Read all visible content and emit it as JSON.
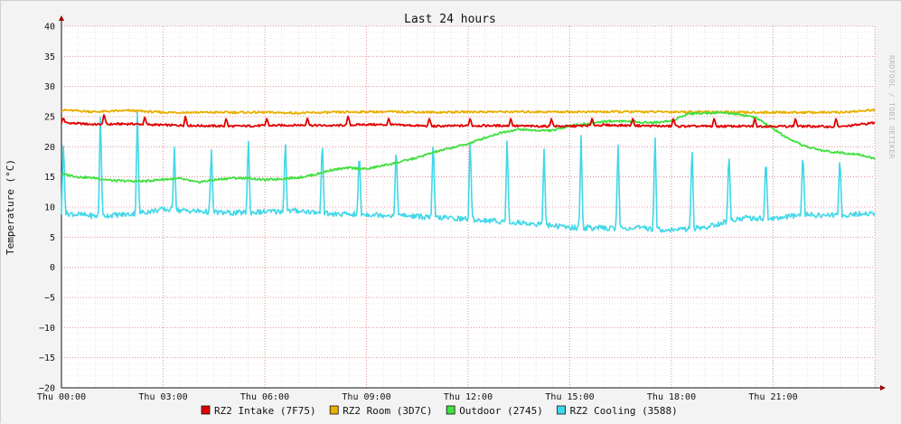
{
  "chart_data": {
    "type": "line",
    "title": "Last 24 hours",
    "ylabel": "Temperature (°C)",
    "ylim": [
      -20,
      40
    ],
    "xlim": [
      "Thu 00:00",
      "Thu 24:00"
    ],
    "yticks": [
      "40",
      "35",
      "30",
      "25",
      "20",
      "15",
      "10",
      "5",
      "0",
      "−5",
      "−10",
      "−15",
      "−20"
    ],
    "xticks": [
      "Thu 00:00",
      "Thu 03:00",
      "Thu 06:00",
      "Thu 09:00",
      "Thu 12:00",
      "Thu 15:00",
      "Thu 18:00",
      "Thu 21:00"
    ],
    "grid": true,
    "legend_position": "bottom",
    "watermark": "RRDTOOL / TOBI OETIKER",
    "series": [
      {
        "name": "RZ2 Intake (7F75)",
        "color": "#e00000",
        "x_hours": [
          0,
          1,
          2,
          3,
          4,
          5,
          6,
          7,
          8,
          9,
          10,
          11,
          12,
          13,
          14,
          15,
          16,
          17,
          18,
          19,
          20,
          21,
          22,
          23,
          24
        ],
        "values": [
          24,
          23.7,
          23.8,
          23.6,
          23.5,
          23.4,
          23.5,
          23.6,
          23.5,
          23.7,
          23.6,
          23.4,
          23.5,
          23.5,
          23.4,
          23.4,
          23.6,
          23.5,
          23.4,
          23.4,
          23.4,
          23.4,
          23.4,
          23.3,
          24
        ],
        "spikes": [
          24.8,
          25.5,
          25,
          25.2,
          24.8,
          24.8,
          24.9,
          25.2,
          24.8,
          24.8,
          24.8,
          24.8,
          24.8,
          24.8,
          24.8,
          24.8,
          24.8,
          24.8,
          24.8,
          24.8
        ]
      },
      {
        "name": "RZ2 Room (3D7C)",
        "color": "#e8b000",
        "x_hours": [
          0,
          1,
          2,
          3,
          4,
          5,
          6,
          7,
          8,
          9,
          10,
          11,
          12,
          13,
          14,
          15,
          16,
          17,
          18,
          19,
          20,
          21,
          22,
          23,
          24
        ],
        "values": [
          26.1,
          25.8,
          26,
          25.7,
          25.7,
          25.7,
          25.7,
          25.6,
          25.7,
          25.8,
          25.8,
          25.7,
          25.8,
          25.8,
          25.8,
          25.8,
          25.8,
          25.8,
          25.8,
          25.8,
          25.7,
          25.7,
          25.7,
          25.7,
          26.1
        ]
      },
      {
        "name": "Outdoor (2745)",
        "color": "#40e040",
        "x_hours": [
          0,
          0.5,
          1,
          1.5,
          2,
          2.5,
          3,
          3.5,
          4,
          4.5,
          5,
          5.5,
          6,
          6.5,
          7,
          7.5,
          8,
          8.5,
          9,
          9.5,
          10,
          10.5,
          11,
          11.5,
          12,
          12.5,
          13,
          13.5,
          14,
          14.5,
          15,
          15.5,
          16,
          16.5,
          17,
          17.5,
          18,
          18.5,
          19,
          19.5,
          20,
          20.5,
          21,
          21.5,
          22,
          22.5,
          23,
          23.5,
          24
        ],
        "values": [
          15.5,
          15,
          14.8,
          14.4,
          14.3,
          14.3,
          14.6,
          14.7,
          14.1,
          14.5,
          14.8,
          14.8,
          14.5,
          14.7,
          14.9,
          15.4,
          16.2,
          16.5,
          16.3,
          16.9,
          17.5,
          18.2,
          19.1,
          19.8,
          20.5,
          21.5,
          22.4,
          22.9,
          22.7,
          22.7,
          23.5,
          23.8,
          24.2,
          24.3,
          24.1,
          24,
          24.3,
          25.5,
          25.6,
          25.7,
          25.4,
          24.8,
          23,
          21.1,
          20,
          19.3,
          19,
          18.8,
          18
        ]
      },
      {
        "name": "RZ2 Cooling (3588)",
        "color": "#40d8e8",
        "x_hours": [
          0,
          1,
          2,
          3,
          4,
          5,
          6,
          7,
          8,
          9,
          10,
          11,
          12,
          13,
          14,
          15,
          16,
          17,
          18,
          19,
          20,
          21,
          22,
          23,
          24
        ],
        "values": [
          9,
          8.5,
          8.8,
          9.6,
          9.3,
          9,
          9.2,
          9.4,
          8.8,
          8.8,
          8.6,
          8.3,
          8,
          7.6,
          7.2,
          6.6,
          6.5,
          6.5,
          6.2,
          6.6,
          8.2,
          8.1,
          8.7,
          8.6,
          9
        ],
        "spikes": [
          21.5,
          26.2,
          26.3,
          20,
          20,
          22,
          22,
          22,
          20,
          21,
          22,
          22,
          22,
          20,
          22,
          21,
          23,
          21,
          20,
          19,
          20,
          19
        ]
      }
    ]
  },
  "legend": [
    {
      "label": "RZ2 Intake (7F75)",
      "color": "#e00000"
    },
    {
      "label": "RZ2 Room (3D7C)",
      "color": "#e8b000"
    },
    {
      "label": "Outdoor (2745)",
      "color": "#40e040"
    },
    {
      "label": "RZ2 Cooling (3588)",
      "color": "#40d8e8"
    }
  ]
}
